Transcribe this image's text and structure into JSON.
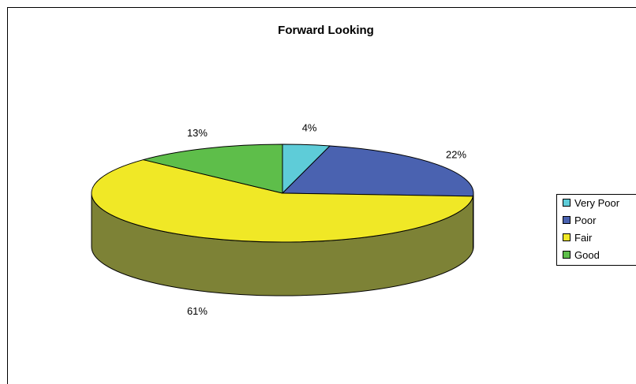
{
  "chart_data": {
    "type": "pie",
    "title": "Forward Looking",
    "categories": [
      "Very Poor",
      "Poor",
      "Fair",
      "Good"
    ],
    "values": [
      4,
      22,
      61,
      13
    ],
    "data_labels": [
      "4%",
      "22%",
      "61%",
      "13%"
    ],
    "colors": [
      "#5ECCD8",
      "#4A62B0",
      "#F0E826",
      "#5EBE4A"
    ],
    "side_colors": [
      "#3F8F97",
      "#33457D",
      "#7D8236",
      "#417F33"
    ],
    "style": "3d",
    "legend": {
      "position": "right",
      "entries": [
        "Very Poor",
        "Poor",
        "Fair",
        "Good"
      ]
    }
  }
}
